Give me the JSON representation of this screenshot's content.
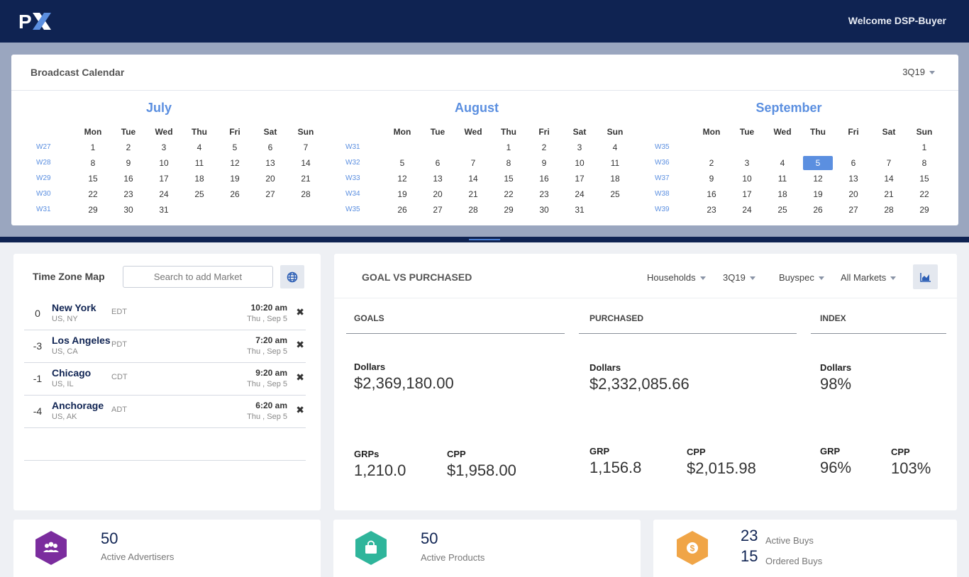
{
  "header": {
    "logo_text": "PX",
    "welcome": "Welcome DSP-Buyer"
  },
  "calendar": {
    "title": "Broadcast Calendar",
    "quarter": "3Q19",
    "day_headers": [
      "Mon",
      "Tue",
      "Wed",
      "Thu",
      "Fri",
      "Sat",
      "Sun"
    ],
    "months": [
      {
        "name": "July",
        "weeks": [
          {
            "label": "W27",
            "days": [
              "1",
              "2",
              "3",
              "4",
              "5",
              "6",
              "7"
            ]
          },
          {
            "label": "W28",
            "days": [
              "8",
              "9",
              "10",
              "11",
              "12",
              "13",
              "14"
            ]
          },
          {
            "label": "W29",
            "days": [
              "15",
              "16",
              "17",
              "18",
              "19",
              "20",
              "21"
            ]
          },
          {
            "label": "W30",
            "days": [
              "22",
              "23",
              "24",
              "25",
              "26",
              "27",
              "28"
            ]
          },
          {
            "label": "W31",
            "days": [
              "29",
              "30",
              "31",
              "",
              "",
              "",
              ""
            ]
          }
        ]
      },
      {
        "name": "August",
        "weeks": [
          {
            "label": "W31",
            "days": [
              "",
              "",
              "",
              "1",
              "2",
              "3",
              "4"
            ]
          },
          {
            "label": "W32",
            "days": [
              "5",
              "6",
              "7",
              "8",
              "9",
              "10",
              "11"
            ]
          },
          {
            "label": "W33",
            "days": [
              "12",
              "13",
              "14",
              "15",
              "16",
              "17",
              "18"
            ]
          },
          {
            "label": "W34",
            "days": [
              "19",
              "20",
              "21",
              "22",
              "23",
              "24",
              "25"
            ]
          },
          {
            "label": "W35",
            "days": [
              "26",
              "27",
              "28",
              "29",
              "30",
              "31",
              ""
            ]
          }
        ]
      },
      {
        "name": "September",
        "weeks": [
          {
            "label": "W35",
            "days": [
              "",
              "",
              "",
              "",
              "",
              "",
              "1"
            ]
          },
          {
            "label": "W36",
            "days": [
              "2",
              "3",
              "4",
              "5",
              "6",
              "7",
              "8"
            ]
          },
          {
            "label": "W37",
            "days": [
              "9",
              "10",
              "11",
              "12",
              "13",
              "14",
              "15"
            ]
          },
          {
            "label": "W38",
            "days": [
              "16",
              "17",
              "18",
              "19",
              "20",
              "21",
              "22"
            ]
          },
          {
            "label": "W39",
            "days": [
              "23",
              "24",
              "25",
              "26",
              "27",
              "28",
              "29"
            ]
          }
        ]
      }
    ],
    "today": {
      "month": "September",
      "day": "5"
    }
  },
  "timezone": {
    "title": "Time Zone Map",
    "search_placeholder": "Search to add Market",
    "rows": [
      {
        "offset": "0",
        "city": "New York",
        "region": "US, NY",
        "abbr": "EDT",
        "time": "10:20 am",
        "date": "Thu , Sep 5"
      },
      {
        "offset": "-3",
        "city": "Los Angeles",
        "region": "US, CA",
        "abbr": "PDT",
        "time": "7:20 am",
        "date": "Thu , Sep 5"
      },
      {
        "offset": "-1",
        "city": "Chicago",
        "region": "US, IL",
        "abbr": "CDT",
        "time": "9:20 am",
        "date": "Thu , Sep 5"
      },
      {
        "offset": "-4",
        "city": "Anchorage",
        "region": "US, AK",
        "abbr": "ADT",
        "time": "6:20 am",
        "date": "Thu , Sep 5"
      }
    ]
  },
  "goal_vs_purchased": {
    "title": "GOAL VS PURCHASED",
    "filters": {
      "demo": "Households",
      "quarter": "3Q19",
      "spec": "Buyspec",
      "markets": "All Markets"
    },
    "goals": {
      "heading": "GOALS",
      "dollars_label": "Dollars",
      "dollars": "$2,369,180.00",
      "grp_label": "GRPs",
      "grp": "1,210.0",
      "cpp_label": "CPP",
      "cpp": "$1,958.00"
    },
    "purchased": {
      "heading": "PURCHASED",
      "dollars_label": "Dollars",
      "dollars": "$2,332,085.66",
      "grp_label": "GRP",
      "grp": "1,156.8",
      "cpp_label": "CPP",
      "cpp": "$2,015.98"
    },
    "index": {
      "heading": "INDEX",
      "dollars_label": "Dollars",
      "dollars": "98%",
      "grp_label": "GRP",
      "grp": "96%",
      "cpp_label": "CPP",
      "cpp": "103%"
    }
  },
  "stats": {
    "advertisers": {
      "count": "50",
      "label": "Active Advertisers",
      "color": "#7b2d9e"
    },
    "products": {
      "count": "50",
      "label": "Active Products",
      "color": "#2fb59b"
    },
    "buys": {
      "active_count": "23",
      "active_label": "Active Buys",
      "ordered_count": "15",
      "ordered_label": "Ordered Buys",
      "color": "#f0a547"
    }
  }
}
